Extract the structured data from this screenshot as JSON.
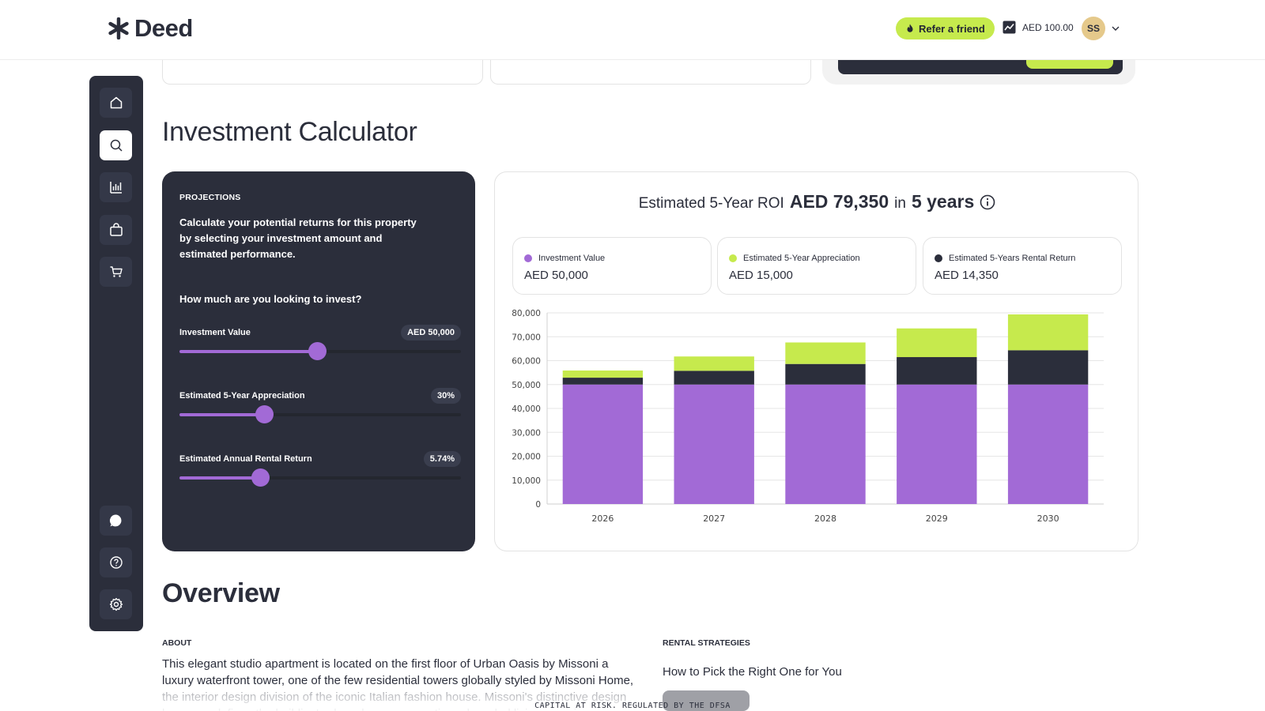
{
  "header": {
    "logo_text": "Deed",
    "refer_label": "Refer a friend",
    "wallet_balance": "AED 100.00",
    "avatar_initials": "SS"
  },
  "sidebar": {
    "items": [
      {
        "icon": "home-icon",
        "active": false
      },
      {
        "icon": "search-icon",
        "active": true
      },
      {
        "icon": "bar-chart-icon",
        "active": false
      },
      {
        "icon": "bag-icon",
        "active": false
      },
      {
        "icon": "cart-icon",
        "active": false
      },
      {
        "icon": "chat-icon",
        "active": false
      },
      {
        "icon": "help-icon",
        "active": false
      },
      {
        "icon": "gear-icon",
        "active": false
      }
    ]
  },
  "calculator": {
    "title": "Investment Calculator",
    "projections": {
      "tag": "PROJECTIONS",
      "description": "Calculate your potential returns for this property by selecting your investment amount and estimated performance.",
      "question": "How much are you looking to invest?",
      "sliders": [
        {
          "label": "Investment Value",
          "value": "AED 50,000",
          "fraction": 0.49
        },
        {
          "label": "Estimated 5-Year Appreciation",
          "value": "30%",
          "fraction": 0.3
        },
        {
          "label": "Estimated Annual Rental Return",
          "value": "5.74%",
          "fraction": 0.287
        }
      ]
    },
    "roi": {
      "prefix": "Estimated 5-Year ROI",
      "amount": "AED 79,350",
      "in_word": "in",
      "period": "5 years",
      "stats": [
        {
          "label": "Investment Value",
          "value": "AED 50,000",
          "color": "#a26ad6"
        },
        {
          "label": "Estimated 5-Year Appreciation",
          "value": "AED 15,000",
          "color": "#c6ea4d"
        },
        {
          "label": "Estimated 5-Years Rental Return",
          "value": "AED 14,350",
          "color": "#2b2e3b"
        }
      ]
    }
  },
  "chart_data": {
    "type": "bar",
    "stacked": true,
    "categories": [
      "2026",
      "2027",
      "2028",
      "2029",
      "2030"
    ],
    "series": [
      {
        "name": "Investment Value",
        "color": "#a26ad6",
        "values": [
          50000,
          50000,
          50000,
          50000,
          50000
        ]
      },
      {
        "name": "Rental Return",
        "color": "#2b2e3b",
        "values": [
          2870,
          5740,
          8610,
          11480,
          14350
        ]
      },
      {
        "name": "Appreciation",
        "color": "#c6ea4d",
        "values": [
          3000,
          6000,
          9000,
          12000,
          15000
        ]
      }
    ],
    "ylim": [
      0,
      80000
    ],
    "yticks": [
      "0",
      "10,000",
      "20,000",
      "30,000",
      "40,000",
      "50,000",
      "60,000",
      "70,000",
      "80,000"
    ],
    "grid": true
  },
  "overview": {
    "title": "Overview",
    "about_tag": "ABOUT",
    "about_text": "This elegant studio apartment is located on the first floor of Urban Oasis by Missoni a luxury waterfront tower, one of the few residential towers globally styled by Missoni Home, the interior design division of the iconic Italian fashion house. Missoni's distinctive design language defines the building's shared spaces, creating a branded living experience.",
    "rental_tag": "RENTAL STRATEGIES",
    "rental_link": "How to Pick the Right One for You"
  },
  "disclaimer": "CAPITAL AT RISK. REGULATED BY THE DFSA"
}
